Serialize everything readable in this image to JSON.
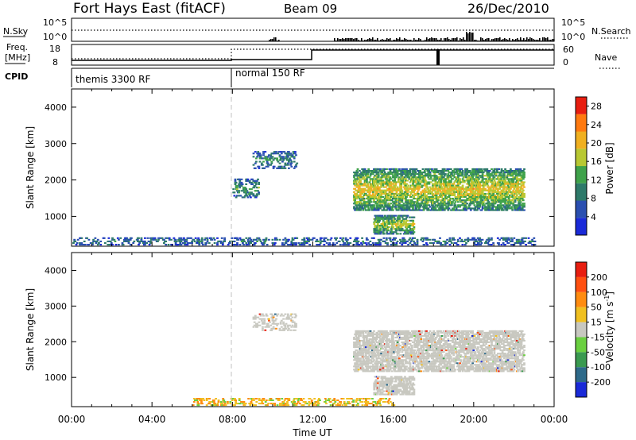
{
  "header": {
    "title": "Fort Hays East (fitACF)",
    "beam": "Beam 09",
    "date": "26/Dec/2010"
  },
  "top_panels": {
    "nsky_label": "N.Sky",
    "nsky_ticks": [
      "10^5",
      "10^0"
    ],
    "nsearch_label": "N.Search",
    "nsearch_ticks": [
      "10^5",
      "10^0"
    ],
    "freq_label": "Freq.",
    "freq_unit": "[MHz]",
    "freq_ticks": [
      "18",
      "8"
    ],
    "nave_label": "Nave",
    "nave_ticks": [
      "60",
      "0"
    ],
    "cpid_label": "CPID",
    "cpid_segments": [
      {
        "label": "themis 3300 RF",
        "start_hour": 0,
        "end_hour": 8
      },
      {
        "label": "normal 150 RF",
        "start_hour": 8,
        "end_hour": 24
      }
    ]
  },
  "chart_data": [
    {
      "type": "heatmap",
      "title": "Power",
      "ylabel": "Slant Range [km]",
      "xlabel": "",
      "xlim": [
        0,
        24
      ],
      "ylim": [
        180,
        4500
      ],
      "yticks": [
        "1000",
        "2000",
        "3000",
        "4000"
      ],
      "colorbar_label": "Power [dB]",
      "colorbar_ticks": [
        "4",
        "8",
        "12",
        "16",
        "20",
        "24",
        "28"
      ],
      "colorbar_range": [
        0,
        30
      ],
      "colors": [
        "#1a2ad8",
        "#2a4fb0",
        "#2e7a6a",
        "#3fa24a",
        "#b8c832",
        "#f0b020",
        "#ff7a10",
        "#e81e10"
      ],
      "features": [
        {
          "name": "near-range ground band",
          "time": [
            0,
            23
          ],
          "range": [
            200,
            400
          ],
          "value": 8
        },
        {
          "name": "patch A",
          "time": [
            9.0,
            11.2
          ],
          "range": [
            2300,
            2750
          ],
          "value": 10
        },
        {
          "name": "patch B",
          "time": [
            8.0,
            9.3
          ],
          "range": [
            1500,
            2000
          ],
          "value": 12
        },
        {
          "name": "main echo band",
          "time": [
            14.0,
            22.5
          ],
          "range": [
            1150,
            2300
          ],
          "value": 20
        },
        {
          "name": "lower echo",
          "time": [
            15.0,
            17.0
          ],
          "range": [
            500,
            1000
          ],
          "value": 18
        }
      ]
    },
    {
      "type": "heatmap",
      "title": "Velocity",
      "ylabel": "Slant Range [km]",
      "xlabel": "Time UT",
      "xlim": [
        0,
        24
      ],
      "ylim": [
        180,
        4500
      ],
      "yticks": [
        "1000",
        "2000",
        "3000",
        "4000"
      ],
      "xticks": [
        "00:00",
        "04:00",
        "08:00",
        "12:00",
        "16:00",
        "20:00",
        "00:00"
      ],
      "colorbar_label": "Velocity [m s",
      "colorbar_label_sup": "-1",
      "colorbar_label_end": "]",
      "colorbar_ticks": [
        "200",
        "100",
        "50",
        "15",
        "-15",
        "-50",
        "-100",
        "-200"
      ],
      "colors": [
        "#1a2ad8",
        "#2e6a8a",
        "#3a9a50",
        "#6ad040",
        "#c8c8c0",
        "#f0c020",
        "#ff8c10",
        "#ff5010",
        "#e81e10"
      ],
      "features": [
        {
          "name": "near-range band",
          "time": [
            6,
            16
          ],
          "range": [
            200,
            420
          ],
          "value": -50
        },
        {
          "name": "patch A",
          "time": [
            9.0,
            11.2
          ],
          "range": [
            2300,
            2750
          ],
          "value": 0
        },
        {
          "name": "main echo band",
          "time": [
            14.0,
            22.5
          ],
          "range": [
            1150,
            2300
          ],
          "value": 0
        },
        {
          "name": "lower echo",
          "time": [
            15.0,
            17.0
          ],
          "range": [
            500,
            1000
          ],
          "value": 0
        }
      ]
    }
  ]
}
